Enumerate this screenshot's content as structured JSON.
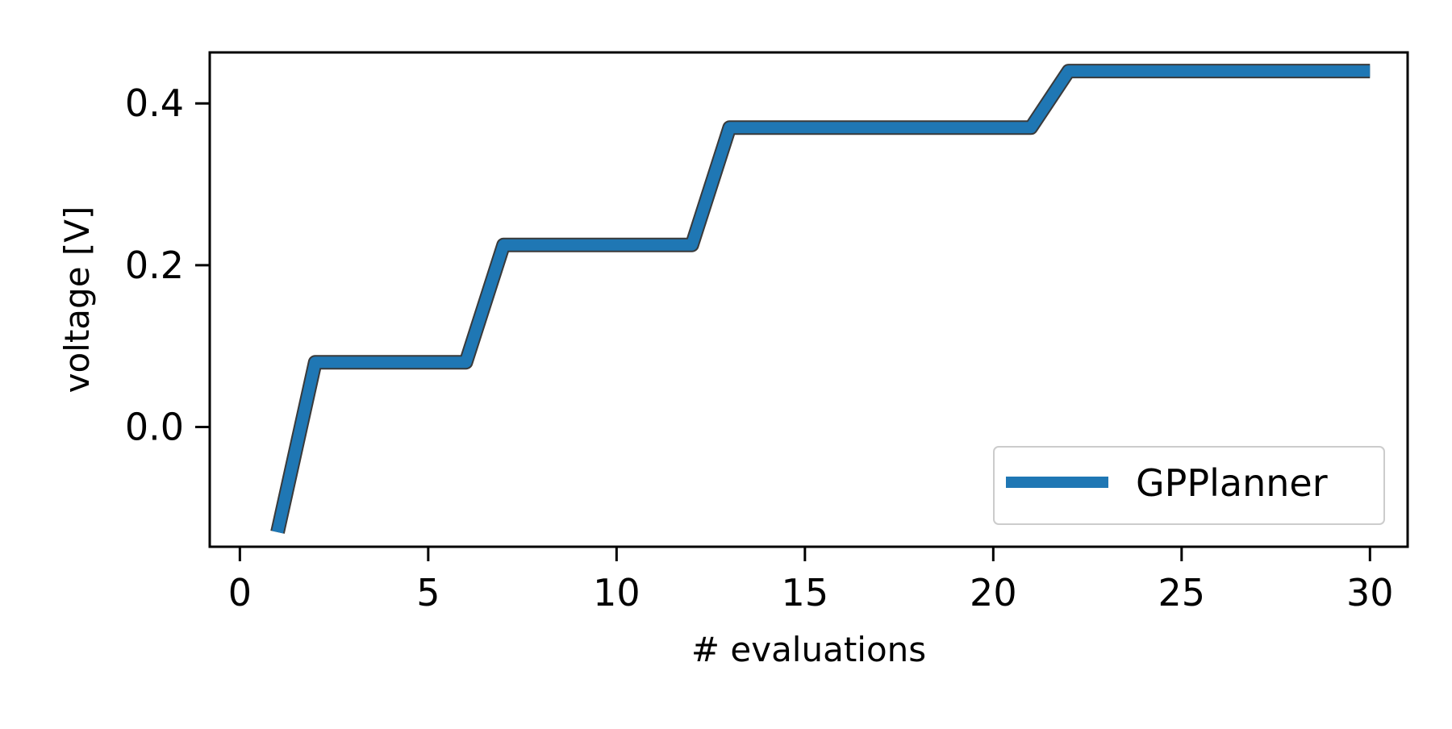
{
  "chart_data": {
    "type": "line",
    "title": "",
    "xlabel": "# evaluations",
    "ylabel": "voltage [V]",
    "xlim": [
      -0.8,
      31.0
    ],
    "ylim": [
      -0.148,
      0.463
    ],
    "xticks": [
      0,
      5,
      10,
      15,
      20,
      25,
      30
    ],
    "xtick_labels": [
      "0",
      "5",
      "10",
      "15",
      "20",
      "25",
      "30"
    ],
    "yticks": [
      0.0,
      0.2,
      0.4
    ],
    "ytick_labels": [
      "0.0",
      "0.2",
      "0.4"
    ],
    "grid": false,
    "legend_position": "bottom-right",
    "series": [
      {
        "name": "GPPlanner",
        "color": "#1f77b4",
        "x": [
          1,
          2,
          3,
          4,
          5,
          6,
          7,
          8,
          9,
          10,
          11,
          12,
          13,
          14,
          15,
          16,
          17,
          18,
          19,
          20,
          21,
          22,
          23,
          24,
          25,
          26,
          27,
          28,
          29,
          30
        ],
        "y": [
          -0.13,
          0.08,
          0.08,
          0.08,
          0.08,
          0.08,
          0.225,
          0.225,
          0.225,
          0.225,
          0.225,
          0.225,
          0.37,
          0.37,
          0.37,
          0.37,
          0.37,
          0.37,
          0.37,
          0.37,
          0.37,
          0.44,
          0.44,
          0.44,
          0.44,
          0.44,
          0.44,
          0.44,
          0.44,
          0.44
        ]
      }
    ]
  }
}
